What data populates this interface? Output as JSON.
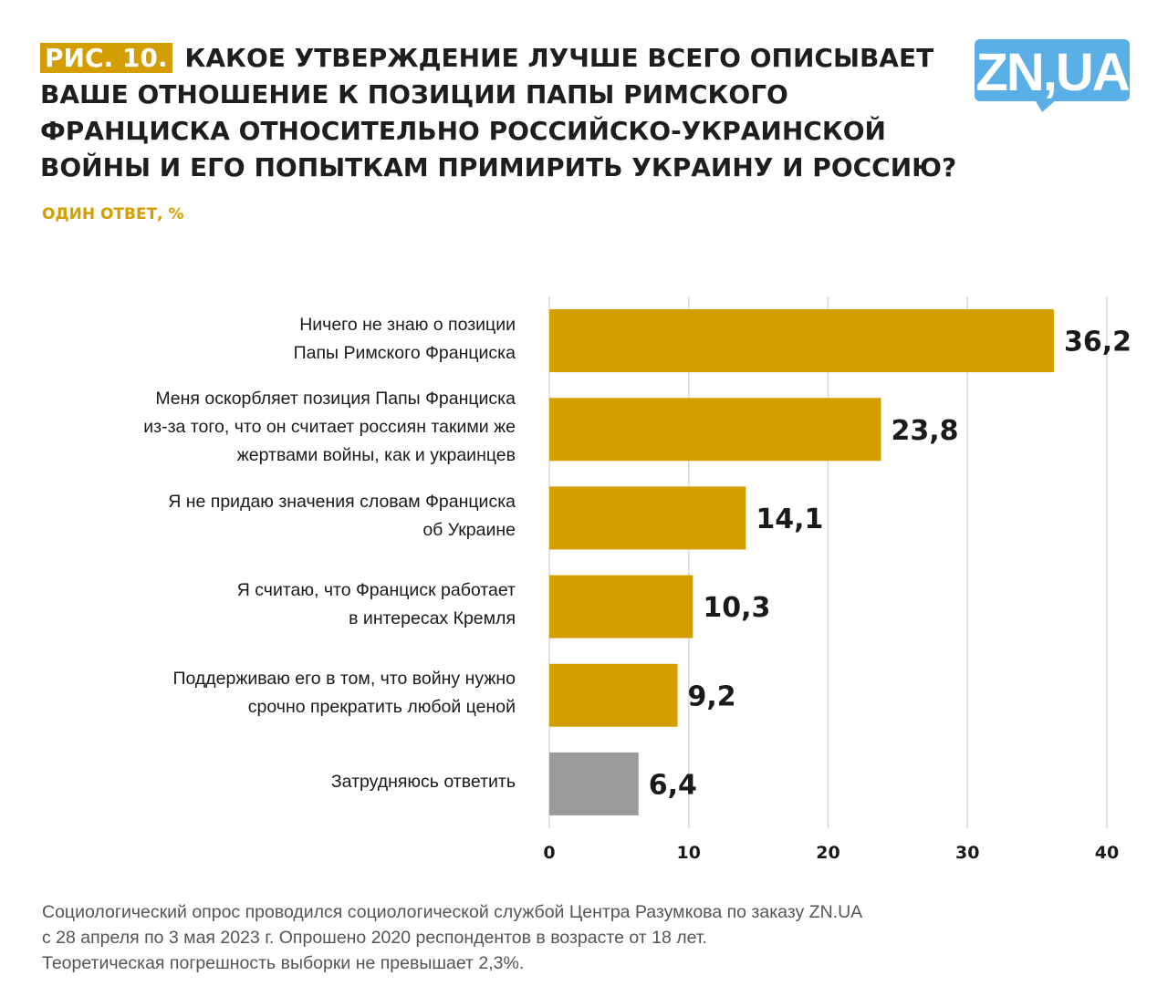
{
  "title": {
    "badge": "РИС. 10.",
    "text": "КАКОЕ УТВЕРЖДЕНИЕ ЛУЧШЕ ВСЕГО ОПИСЫВАЕТ ВАШЕ ОТНОШЕНИЕ К ПОЗИЦИИ ПАПЫ РИМСКОГО ФРАНЦИСКА ОТНОСИТЕЛЬНО РОССИЙСКО-УКРАИНСКОЙ ВОЙНЫ И ЕГО ПОПЫТКАМ ПРИМИРИТЬ УКРАИНУ И РОССИЮ?"
  },
  "subtitle": "ОДИН ОТВЕТ, %",
  "logo": {
    "text": "ZN,UA",
    "color": "#5aafe6"
  },
  "colors": {
    "accent": "#d49e00",
    "neutral": "#9b9b9b",
    "grid": "#d9d9d9"
  },
  "chart_data": {
    "type": "bar",
    "orientation": "horizontal",
    "categories": [
      [
        "Ничего не знаю о позиции",
        "Папы Римского Франциска"
      ],
      [
        "Меня оскорбляет позиция Папы Франциска",
        "из-за того, что он считает россиян такими же",
        "жертвами войны, как и украинцев"
      ],
      [
        "Я не придаю значения словам Франциска",
        "об Украине"
      ],
      [
        "Я считаю, что Франциск работает",
        "в интересах Кремля"
      ],
      [
        "Поддерживаю его в том, что войну нужно",
        "срочно прекратить любой ценой"
      ],
      [
        "Затрудняюсь ответить"
      ]
    ],
    "values": [
      36.2,
      23.8,
      14.1,
      10.3,
      9.2,
      6.4
    ],
    "data_labels": [
      "36,2",
      "23,8",
      "14,1",
      "10,3",
      "9,2",
      "6,4"
    ],
    "bar_colors": [
      "#d49e00",
      "#d49e00",
      "#d49e00",
      "#d49e00",
      "#d49e00",
      "#9b9b9b"
    ],
    "xlim": [
      0,
      40
    ],
    "xticks": [
      0,
      10,
      20,
      30,
      40
    ],
    "xtick_labels": [
      "0",
      "10",
      "20",
      "30",
      "40"
    ],
    "grid": true
  },
  "footer": [
    "Социологический опрос проводился социологической службой Центра Разумкова по заказу ZN.UA",
    "с 28 апреля по 3 мая 2023 г. Опрошено 2020 респондентов в возрасте от 18 лет.",
    "Теоретическая погрешность выборки не превышает 2,3%."
  ]
}
